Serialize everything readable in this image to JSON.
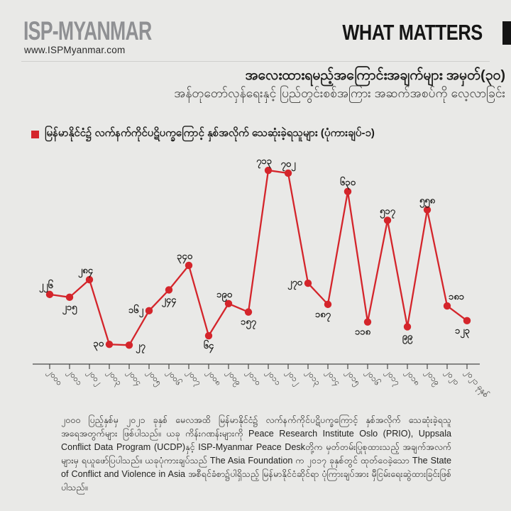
{
  "header": {
    "logo_text": "ISP-MYANMAR",
    "website": "www.ISPMyanmar.com",
    "masthead": "WHAT MATTERS"
  },
  "title": {
    "line1": "အလေးထားရမည့်အကြောင်းအချက်များ အမှတ်(၃၀)",
    "line2": "အန်တုတော်လှန်ရေးနှင့် ပြည်တွင်းစစ်အကြား အဆက်အစပ်ကို လေ့လာခြင်း"
  },
  "legend": {
    "label": "မြန်မာနိုင်ငံ၌ လက်နက်ကိုင်ပဋိပက္ခကြောင့် နှစ်အလိုက် သေဆုံးခဲ့ရသူများ (ပုံကားချပ်-၁)"
  },
  "colors": {
    "accent_red": "#d4252b",
    "text_dark": "#1d1d1b",
    "logo_gray": "#8f9093",
    "background": "#e9e9e7",
    "axis": "#4a4a48"
  },
  "chart_data": {
    "type": "line",
    "title": "မြန်မာနိုင်ငံ၌ လက်နက်ကိုင်ပဋိပက္ခကြောင့် နှစ်အလိုက် သေဆုံးခဲ့ရသူများ (ပုံကားချပ်-၁)",
    "x": [
      2000,
      2001,
      2002,
      2003,
      2004,
      2005,
      2006,
      2007,
      2008,
      2009,
      2010,
      2011,
      2012,
      2013,
      2014,
      2015,
      2016,
      2017,
      2018,
      2019,
      2020,
      2021
    ],
    "x_tick_labels": [
      "၂၀၀၀",
      "၂၀၀၁",
      "၂၀၀၂",
      "၂၀၀၃",
      "၂၀၀၄",
      "၂၀၀၅",
      "၂၀၀၆",
      "၂၀၀၇",
      "၂၀၀၈",
      "၂၀၀၉",
      "၂၀၁၀",
      "၂၀၁၁",
      "၂၀၁၂",
      "၂၀၁၃",
      "၂၀၁၄",
      "၂၀၁၅",
      "၂၀၁၆",
      "၂၀၁၇",
      "၂၀၁၈",
      "၂၀၁၉",
      "၂၀၂၀",
      "၂၀၂၁ ခုနှစ်"
    ],
    "values": [
      226,
      215,
      284,
      30,
      27,
      162,
      244,
      340,
      64,
      190,
      157,
      713,
      702,
      270,
      187,
      630,
      118,
      517,
      99,
      558,
      181,
      123
    ],
    "point_labels": [
      "၂၂၆",
      "၂၁၅",
      "၂၈၄",
      "၃၀",
      "၂၇",
      "၁၆၂",
      "၂၄၄",
      "၃၄၀",
      "၆၄",
      "၁၉၀",
      "၁၅၇",
      "၇၁၃",
      "၇၀၂",
      "၂၇၀",
      "၁၈၇",
      "၆၃၀",
      "၁၁၈",
      "၅၁၇",
      "၉၉",
      "၅၅၈",
      "၁၈၁",
      "၁၂၃"
    ],
    "label_placement": [
      "above-left",
      "below",
      "above-left",
      "left",
      "right",
      "left",
      "below",
      "above-left",
      "below",
      "above-left",
      "below",
      "above-left",
      "above",
      "left",
      "below-left",
      "above",
      "below-left",
      "above",
      "below",
      "above",
      "above-right",
      "below-left"
    ],
    "series_color": "#d4252b",
    "ylabel": "",
    "xlabel": "",
    "ylim": [
      0,
      760
    ],
    "grid": false,
    "legend_position": "top-left"
  },
  "footer": {
    "paragraph": "၂၀၀၀ ပြည့်နှစ်မှ ၂၀၂၁ ခုနှစ် မေလအထိ မြန်မာနိုင်ငံ၌ လက်နက်ကိုင်ပဋိပက္ခကြောင့် နှစ်အလိုက် သေဆုံးခဲ့ရသူ အရေအတွက်များ ဖြစ်ပါသည်။ ယခု ကိန်းဂဏန်းများကို Peace Research Institute Oslo (PRIO), Uppsala Conflict Data Program (UCDP)နှင့် ISP-Myanmar Peace Deskတို့က မှတ်တမ်းပြုစုထားသည့် အချက်အလက်များမှ ရယူဖော်ပြပါသည်။ ယခုပုံကားချပ်သည် The Asia Foundation က ၂၀၁၇ ခုနှစ်တွင် ထုတ်ဝေခဲ့သော The State of Conflict and Violence in Asia အစီရင်ခံစာ၌ပါရှိသည့် မြန်မာနိုင်ငံဆိုင်ရာ ပုံကြားချပ်အား မှီငြမ်းရေးဆွဲထားခြင်းဖြစ်ပါသည်။"
  }
}
